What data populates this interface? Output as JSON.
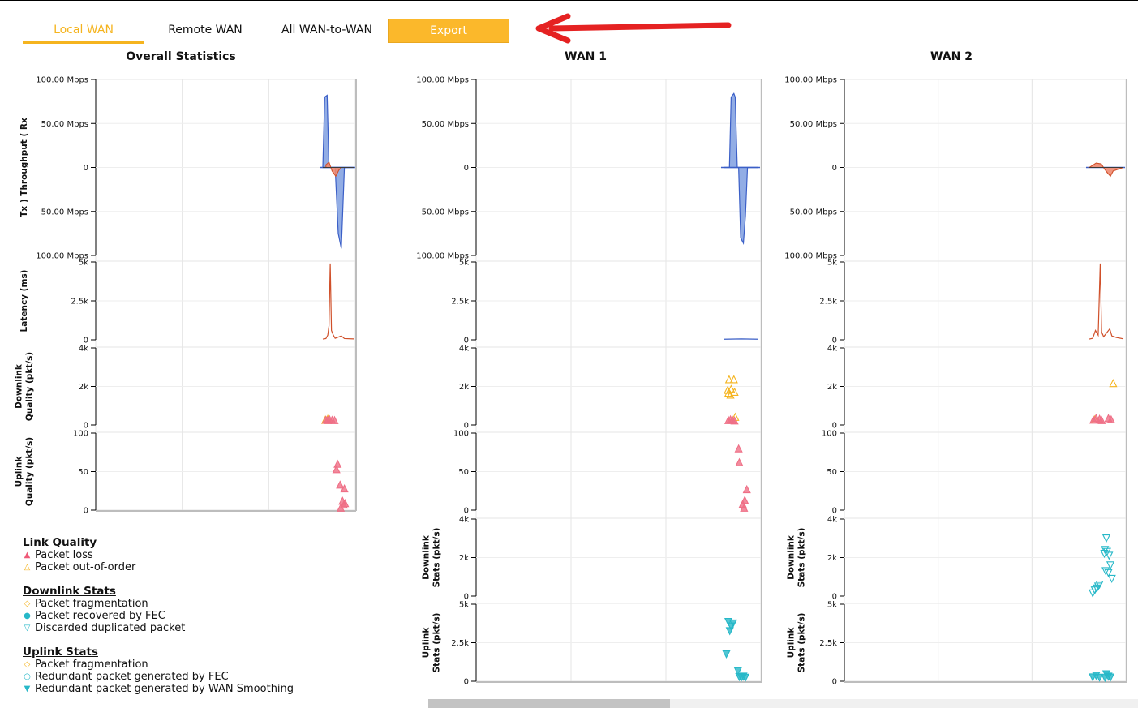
{
  "tabs": [
    {
      "label": "Local WAN",
      "active": true
    },
    {
      "label": "Remote WAN",
      "active": false
    },
    {
      "label": "All WAN-to-WAN",
      "active": false
    }
  ],
  "export_label": "Export",
  "columns": [
    "Overall Statistics",
    "WAN 1",
    "WAN 2"
  ],
  "colors": {
    "accent": "#f5b41f",
    "throughput_fill": "#7f9fe0",
    "throughput_line": "#3b5fc7",
    "latency_red": "#d0502a",
    "packet_loss": "#ef6f86",
    "out_of_order": "#f5b41f",
    "fec_teal": "#27b8c8",
    "arrow": "#e52222"
  },
  "rows": [
    {
      "key": "throughput",
      "label": "Tx ) Throughput ( Rx",
      "ticks": [
        "100.00 Mbps",
        "50.00 Mbps",
        "0",
        "50.00 Mbps",
        "100.00 Mbps"
      ]
    },
    {
      "key": "latency",
      "label": "Latency (ms)",
      "ticks": [
        "5k",
        "2.5k",
        "0"
      ]
    },
    {
      "key": "downlink_quality",
      "label": "Downlink Quality (pkt/s)",
      "ticks": [
        "4k",
        "2k",
        "0"
      ]
    },
    {
      "key": "uplink_quality",
      "label": "Uplink Quality (pkt/s)",
      "ticks": [
        "100",
        "50",
        "0"
      ]
    },
    {
      "key": "downlink_stats",
      "label": "Downlink Stats (pkt/s)",
      "ticks": [
        "4k",
        "2k",
        "0"
      ]
    },
    {
      "key": "uplink_stats",
      "label": "Uplink Stats (pkt/s)",
      "ticks": [
        "5k",
        "2.5k",
        "0"
      ]
    }
  ],
  "legend": [
    {
      "title": "Link Quality",
      "items": [
        {
          "symbol": "▲",
          "color": "#ef5a78",
          "label": "Packet loss"
        },
        {
          "symbol": "△",
          "color": "#f5b41f",
          "label": "Packet out-of-order"
        }
      ]
    },
    {
      "title": "Downlink Stats",
      "items": [
        {
          "symbol": "◇",
          "color": "#f5b41f",
          "label": "Packet fragmentation"
        },
        {
          "symbol": "●",
          "color": "#27b8c8",
          "label": "Packet recovered by FEC"
        },
        {
          "symbol": "▽",
          "color": "#27b8c8",
          "label": "Discarded duplicated packet"
        }
      ]
    },
    {
      "title": "Uplink Stats",
      "items": [
        {
          "symbol": "◇",
          "color": "#f5b41f",
          "label": "Packet fragmentation"
        },
        {
          "symbol": "○",
          "color": "#27b8c8",
          "label": "Redundant packet generated by FEC"
        },
        {
          "symbol": "▼",
          "color": "#27b8c8",
          "label": "Redundant packet generated by WAN Smoothing"
        }
      ]
    }
  ],
  "series": {
    "overall": {
      "rx": [
        [
          0,
          0
        ],
        [
          0.06,
          80
        ],
        [
          0.14,
          82
        ],
        [
          0.2,
          0
        ],
        [
          1,
          0
        ]
      ],
      "tx": [
        [
          0,
          0
        ],
        [
          0.4,
          0
        ],
        [
          0.5,
          -75
        ],
        [
          0.6,
          -92
        ],
        [
          0.7,
          0
        ],
        [
          1,
          0
        ]
      ],
      "wan_area": [
        [
          0.1,
          3
        ],
        [
          0.2,
          6
        ],
        [
          0.3,
          -4
        ],
        [
          0.42,
          -10
        ],
        [
          0.52,
          -3
        ],
        [
          0.6,
          0
        ]
      ],
      "latency": [
        [
          0,
          50
        ],
        [
          0.1,
          80
        ],
        [
          0.16,
          300
        ],
        [
          0.2,
          900
        ],
        [
          0.24,
          4900
        ],
        [
          0.28,
          600
        ],
        [
          0.34,
          300
        ],
        [
          0.4,
          100
        ],
        [
          0.6,
          250
        ],
        [
          0.7,
          80
        ],
        [
          1,
          60
        ]
      ],
      "loss_down": [
        [
          0.1,
          100
        ],
        [
          0.16,
          80
        ],
        [
          0.22,
          120
        ],
        [
          0.3,
          90
        ],
        [
          0.38,
          80
        ]
      ],
      "ooo_down": [
        [
          0.08,
          90
        ],
        [
          0.16,
          150
        ]
      ],
      "loss_up": [
        [
          0.48,
          60
        ],
        [
          0.44,
          53
        ],
        [
          0.56,
          33
        ],
        [
          0.7,
          28
        ],
        [
          0.64,
          12
        ],
        [
          0.68,
          7
        ],
        [
          0.58,
          3
        ],
        [
          0.72,
          9
        ]
      ]
    },
    "wan1": {
      "rx": [
        [
          0,
          0
        ],
        [
          0.15,
          0
        ],
        [
          0.2,
          80
        ],
        [
          0.28,
          84
        ],
        [
          0.32,
          80
        ],
        [
          0.38,
          0
        ],
        [
          1,
          0
        ]
      ],
      "tx": [
        [
          0,
          0
        ],
        [
          0.42,
          0
        ],
        [
          0.48,
          -80
        ],
        [
          0.56,
          -86
        ],
        [
          0.62,
          -55
        ],
        [
          0.68,
          0
        ],
        [
          1,
          0
        ]
      ],
      "latency": [
        [
          0,
          40
        ],
        [
          0.5,
          60
        ],
        [
          1,
          40
        ]
      ],
      "ooo_down": [
        [
          0.14,
          2200
        ],
        [
          0.28,
          2200
        ],
        [
          0.1,
          1650
        ],
        [
          0.18,
          1400
        ],
        [
          0.3,
          1550
        ],
        [
          0.2,
          1700
        ],
        [
          0.32,
          250
        ],
        [
          0.12,
          1500
        ]
      ],
      "loss_down": [
        [
          0.12,
          80
        ],
        [
          0.18,
          120
        ],
        [
          0.24,
          90
        ],
        [
          0.3,
          60
        ]
      ],
      "loss_up": [
        [
          0.42,
          80
        ],
        [
          0.44,
          62
        ],
        [
          0.66,
          27
        ],
        [
          0.6,
          13
        ],
        [
          0.54,
          8
        ],
        [
          0.58,
          3
        ]
      ],
      "discard_down": [],
      "redundant_up": [
        [
          0.12,
          3700
        ],
        [
          0.2,
          3400
        ],
        [
          0.26,
          3600
        ],
        [
          0.16,
          3100
        ],
        [
          0.06,
          1600
        ],
        [
          0.4,
          500
        ],
        [
          0.44,
          120
        ],
        [
          0.5,
          90
        ],
        [
          0.56,
          150
        ],
        [
          0.62,
          80
        ]
      ]
    },
    "wan2": {
      "rx": [],
      "tx": [],
      "wan_area": [
        [
          0,
          0
        ],
        [
          0.2,
          5
        ],
        [
          0.35,
          4
        ],
        [
          0.45,
          -2
        ],
        [
          0.55,
          -7
        ],
        [
          0.62,
          -10
        ],
        [
          0.7,
          -4
        ],
        [
          1,
          0
        ]
      ],
      "latency": [
        [
          0,
          50
        ],
        [
          0.1,
          100
        ],
        [
          0.18,
          600
        ],
        [
          0.26,
          300
        ],
        [
          0.32,
          4900
        ],
        [
          0.36,
          500
        ],
        [
          0.42,
          200
        ],
        [
          0.6,
          700
        ],
        [
          0.66,
          250
        ],
        [
          0.8,
          150
        ],
        [
          1,
          60
        ]
      ],
      "loss_down": [
        [
          0.12,
          100
        ],
        [
          0.2,
          200
        ],
        [
          0.3,
          150
        ],
        [
          0.36,
          80
        ],
        [
          0.56,
          180
        ],
        [
          0.64,
          120
        ]
      ],
      "ooo_down": [
        [
          0.16,
          120
        ],
        [
          0.7,
          2000
        ]
      ],
      "loss_up": [],
      "discard_down": [
        [
          0.5,
          3000
        ],
        [
          0.46,
          2400
        ],
        [
          0.52,
          2300
        ],
        [
          0.58,
          2100
        ],
        [
          0.44,
          2200
        ],
        [
          0.62,
          1600
        ],
        [
          0.48,
          1300
        ],
        [
          0.56,
          1200
        ],
        [
          0.66,
          900
        ],
        [
          0.3,
          600
        ],
        [
          0.22,
          400
        ],
        [
          0.16,
          300
        ],
        [
          0.26,
          500
        ],
        [
          0.1,
          150
        ]
      ],
      "redundant_up": [
        [
          0.1,
          100
        ],
        [
          0.2,
          200
        ],
        [
          0.3,
          80
        ],
        [
          0.5,
          300
        ],
        [
          0.56,
          150
        ],
        [
          0.62,
          90
        ],
        [
          0.46,
          60
        ]
      ]
    }
  }
}
